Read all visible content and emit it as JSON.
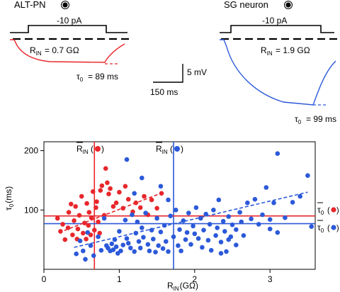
{
  "top_panels": {
    "alt_pn": {
      "title": "ALT-PN",
      "title_color": "#e8262b",
      "current_label": "-10 pA",
      "rin_value": "= 0.7 GΩ",
      "tau_value": "= 89 ms"
    },
    "sg_neuron": {
      "title": "SG neuron",
      "title_color": "#2b59d9",
      "current_label": "-10 pA",
      "rin_value": "= 1.9 GΩ",
      "tau_value": "= 99 ms"
    },
    "scale_bar": {
      "voltage": "5 mV",
      "time": "150 ms"
    }
  },
  "chart_data": {
    "type": "scatter",
    "xlabel_main": "R",
    "xlabel_sub": "IN",
    "xlabel_unit": "(GΩ)",
    "ylabel_main": "τ",
    "ylabel_sub": "0",
    "ylabel_unit": "(ms)",
    "xlim": [
      0,
      3.6
    ],
    "ylim": [
      0,
      215
    ],
    "xticks": [
      "0",
      "1",
      "2",
      "3"
    ],
    "xtick_values": [
      0,
      1,
      2,
      3
    ],
    "yticks": [
      "200",
      "100"
    ],
    "ytick_values": [
      200,
      100
    ],
    "colors": {
      "alt_pn": "#e8262b",
      "sg_neuron": "#2b59d9"
    },
    "annotations": {
      "mean_rin_alt": "R̄IN(●)",
      "mean_rin_sg": "R̄IN(●)",
      "mean_tau_alt": "τ̄0(●)",
      "mean_tau_sg": "τ̄0(●)"
    },
    "mean_lines": {
      "alt_pn": {
        "rin": 0.67,
        "tau": 90
      },
      "sg_neuron": {
        "rin": 1.72,
        "tau": 77
      }
    },
    "regressions": {
      "alt_pn": {
        "x": [
          0.2,
          1.55
        ],
        "y": [
          62,
          128
        ]
      },
      "sg_neuron": {
        "x": [
          0.4,
          3.5
        ],
        "y": [
          37,
          130
        ]
      }
    },
    "series": [
      {
        "name": "ALT-PN",
        "points": [
          [
            0.18,
            86
          ],
          [
            0.22,
            64
          ],
          [
            0.25,
            76
          ],
          [
            0.28,
            50
          ],
          [
            0.32,
            70
          ],
          [
            0.33,
            96
          ],
          [
            0.36,
            110
          ],
          [
            0.38,
            58
          ],
          [
            0.4,
            82
          ],
          [
            0.42,
            106
          ],
          [
            0.44,
            51
          ],
          [
            0.45,
            68
          ],
          [
            0.47,
            91
          ],
          [
            0.5,
            123
          ],
          [
            0.52,
            61
          ],
          [
            0.54,
            78
          ],
          [
            0.56,
            51
          ],
          [
            0.57,
            111
          ],
          [
            0.59,
            74
          ],
          [
            0.6,
            96
          ],
          [
            0.62,
            58
          ],
          [
            0.63,
            87
          ],
          [
            0.65,
            131
          ],
          [
            0.67,
            66
          ],
          [
            0.69,
            104
          ],
          [
            0.7,
            114
          ],
          [
            0.72,
            80
          ],
          [
            0.74,
            61
          ],
          [
            0.75,
            133
          ],
          [
            0.77,
            141
          ],
          [
            0.8,
            91
          ],
          [
            0.82,
            170
          ],
          [
            0.84,
            146
          ],
          [
            0.86,
            127
          ],
          [
            0.88,
            136
          ],
          [
            0.92,
            106
          ],
          [
            0.96,
            112
          ],
          [
            1.0,
            130
          ],
          [
            1.05,
            103
          ],
          [
            1.08,
            140
          ],
          [
            1.12,
            118
          ],
          [
            1.18,
            97
          ],
          [
            1.22,
            112
          ],
          [
            1.28,
            104
          ],
          [
            1.33,
            123
          ],
          [
            1.38,
            92
          ],
          [
            1.43,
            117
          ],
          [
            1.5,
            103
          ],
          [
            1.56,
            128
          ]
        ]
      },
      {
        "name": "SG neuron",
        "points": [
          [
            0.43,
            26
          ],
          [
            0.48,
            48
          ],
          [
            0.52,
            31
          ],
          [
            0.55,
            17
          ],
          [
            0.58,
            62
          ],
          [
            0.62,
            40
          ],
          [
            0.66,
            23
          ],
          [
            0.72,
            55
          ],
          [
            0.76,
            32
          ],
          [
            0.8,
            86
          ],
          [
            0.83,
            40
          ],
          [
            0.85,
            36
          ],
          [
            0.88,
            31
          ],
          [
            0.9,
            43
          ],
          [
            0.92,
            33
          ],
          [
            0.94,
            50
          ],
          [
            0.96,
            38
          ],
          [
            0.98,
            27
          ],
          [
            1.0,
            64
          ],
          [
            1.02,
            31
          ],
          [
            1.05,
            41
          ],
          [
            1.08,
            83
          ],
          [
            1.1,
            52
          ],
          [
            1.12,
            44
          ],
          [
            1.15,
            36
          ],
          [
            1.17,
            92
          ],
          [
            1.2,
            30
          ],
          [
            1.22,
            61
          ],
          [
            1.24,
            80
          ],
          [
            1.26,
            47
          ],
          [
            1.28,
            36
          ],
          [
            1.3,
            70
          ],
          [
            1.32,
            54
          ],
          [
            1.35,
            95
          ],
          [
            1.38,
            42
          ],
          [
            1.4,
            31
          ],
          [
            1.43,
            66
          ],
          [
            1.45,
            51
          ],
          [
            1.48,
            29
          ],
          [
            1.5,
            86
          ],
          [
            1.52,
            40
          ],
          [
            1.55,
            63
          ],
          [
            1.58,
            35
          ],
          [
            1.6,
            74
          ],
          [
            1.62,
            47
          ],
          [
            1.65,
            30
          ],
          [
            1.68,
            90
          ],
          [
            1.72,
            55
          ],
          [
            1.75,
            100
          ],
          [
            1.78,
            40
          ],
          [
            1.8,
            67
          ],
          [
            1.82,
            31
          ],
          [
            1.85,
            82
          ],
          [
            1.88,
            50
          ],
          [
            1.9,
            62
          ],
          [
            1.92,
            95
          ],
          [
            1.95,
            42
          ],
          [
            1.98,
            73
          ],
          [
            2.0,
            60
          ],
          [
            2.02,
            104
          ],
          [
            2.05,
            52
          ],
          [
            2.08,
            86
          ],
          [
            2.1,
            37
          ],
          [
            2.12,
            66
          ],
          [
            2.15,
            93
          ],
          [
            2.18,
            49
          ],
          [
            2.2,
            76
          ],
          [
            2.22,
            32
          ],
          [
            2.25,
            100
          ],
          [
            2.28,
            57
          ],
          [
            2.3,
            70
          ],
          [
            2.32,
            117
          ],
          [
            2.35,
            46
          ],
          [
            2.38,
            81
          ],
          [
            2.4,
            64
          ],
          [
            2.42,
            30
          ],
          [
            2.45,
            89
          ],
          [
            2.48,
            55
          ],
          [
            2.5,
            75
          ],
          [
            2.55,
            67
          ],
          [
            2.6,
            96
          ],
          [
            2.62,
            80
          ],
          [
            2.65,
            57
          ],
          [
            2.7,
            112
          ],
          [
            2.75,
            85
          ],
          [
            2.8,
            118
          ],
          [
            2.85,
            76
          ],
          [
            2.9,
            92
          ],
          [
            2.95,
            138
          ],
          [
            3.0,
            84
          ],
          [
            3.05,
            112
          ],
          [
            3.1,
            195
          ],
          [
            3.2,
            87
          ],
          [
            3.3,
            113
          ],
          [
            3.4,
            123
          ],
          [
            3.5,
            158
          ],
          [
            1.1,
            185
          ],
          [
            1.3,
            154
          ],
          [
            1.55,
            140
          ],
          [
            1.2,
            128
          ],
          [
            1.65,
            117
          ],
          [
            3.0,
            68
          ],
          [
            3.1,
            62
          ],
          [
            3.55,
            72
          ],
          [
            2.35,
            27
          ],
          [
            2.55,
            41
          ],
          [
            2.45,
            50
          ]
        ]
      }
    ]
  }
}
